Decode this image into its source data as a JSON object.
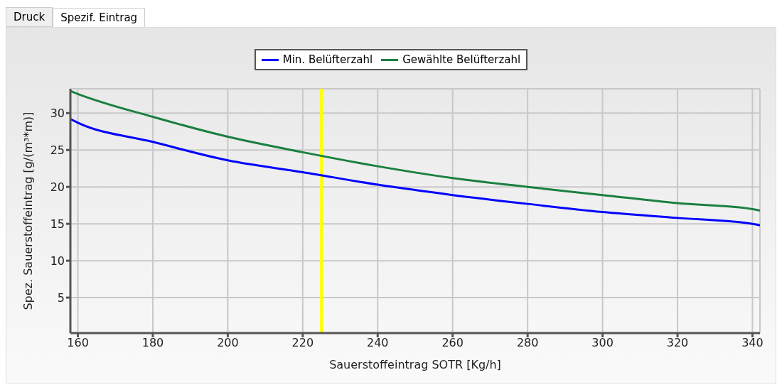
{
  "chart_data": {
    "type": "line",
    "xlabel": "Sauerstoffeintrag SOTR [Kg/h]",
    "ylabel": "Spez. Sauerstoffeintrag [g/(m³*m)]",
    "annotations": [
      "Druck",
      "Spezif. Eintrag"
    ],
    "x": [
      158,
      160,
      180,
      200,
      220,
      240,
      260,
      280,
      300,
      320,
      340,
      342
    ],
    "series": [
      {
        "name": "Min. Belüfterzahl",
        "color": "#0000ff",
        "values": [
          29.2,
          28.7,
          26.1,
          23.6,
          22.0,
          20.3,
          18.9,
          17.7,
          16.6,
          15.8,
          15.0,
          14.8
        ]
      },
      {
        "name": "Gewählte Belüfterzahl",
        "color": "#1a8040",
        "values": [
          33.0,
          32.6,
          29.5,
          26.8,
          24.7,
          22.8,
          21.2,
          20.0,
          18.9,
          17.8,
          17.0,
          16.8
        ]
      }
    ],
    "xlim": [
      158,
      342
    ],
    "xticks": [
      160,
      180,
      200,
      220,
      240,
      260,
      280,
      300,
      320,
      340
    ],
    "ylim": [
      0.2,
      33.3
    ],
    "yticks": [
      5,
      10,
      15,
      20,
      25,
      30
    ],
    "ref_lines": [
      {
        "axis": "x",
        "value": 225,
        "color": "#ffff00"
      }
    ],
    "grid": true,
    "legend": "top",
    "marker": "none",
    "line_style": "solid"
  }
}
